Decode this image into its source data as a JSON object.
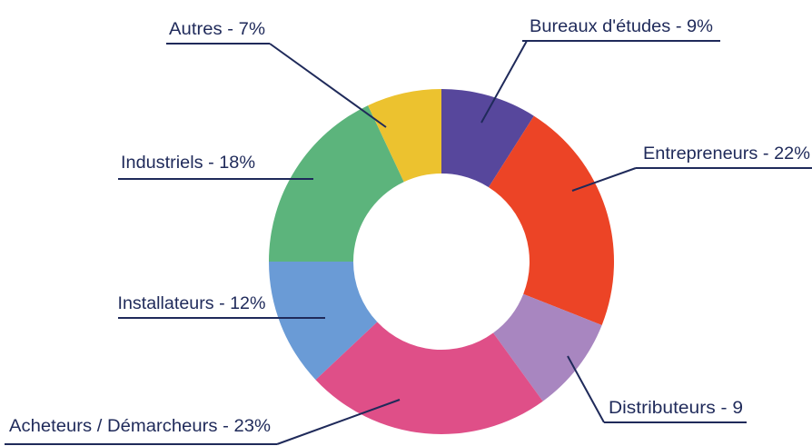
{
  "chart_data": {
    "type": "donut",
    "categories": [
      "Bureaux d'études - 9%",
      "Entrepreneurs - 22%",
      "Distributeurs - 9",
      "Acheteurs / Démarcheurs - 23%",
      "Installateurs - 12%",
      "Industriels - 18%",
      "Autres - 7%"
    ],
    "values": [
      9,
      22,
      9,
      23,
      12,
      18,
      7
    ],
    "colors": [
      "#57479c",
      "#ec4426",
      "#a886c0",
      "#df4f88",
      "#6a9bd6",
      "#5cb47c",
      "#ecc22f"
    ]
  }
}
